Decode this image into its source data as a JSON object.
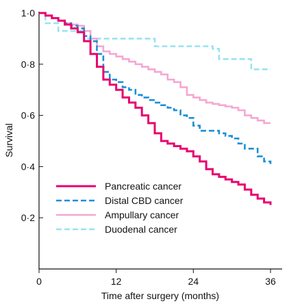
{
  "chart_data": {
    "type": "line",
    "step": true,
    "title": "",
    "xlabel": "Time after surgery (months)",
    "ylabel": "Survival",
    "xlim": [
      0,
      38
    ],
    "ylim": [
      0,
      1.0
    ],
    "x_ticks": [
      0,
      12,
      24,
      36
    ],
    "x_tick_labels": [
      "0",
      "12",
      "24",
      "36"
    ],
    "y_ticks": [
      0.2,
      0.4,
      0.6,
      0.8,
      1.0
    ],
    "y_tick_labels": [
      "0·2",
      "0·4",
      "0·6",
      "0·8",
      "1·0"
    ],
    "grid": false,
    "legend_position": "lower-left",
    "series": [
      {
        "name": "Pancreatic cancer",
        "color": "#e8006e",
        "dash": "solid",
        "points": [
          [
            0,
            1.0
          ],
          [
            1,
            0.99
          ],
          [
            2,
            0.98
          ],
          [
            3,
            0.97
          ],
          [
            4,
            0.955
          ],
          [
            5,
            0.94
          ],
          [
            6,
            0.925
          ],
          [
            7,
            0.89
          ],
          [
            8,
            0.84
          ],
          [
            9,
            0.79
          ],
          [
            10,
            0.74
          ],
          [
            11,
            0.72
          ],
          [
            12,
            0.7
          ],
          [
            13,
            0.67
          ],
          [
            14,
            0.65
          ],
          [
            15,
            0.63
          ],
          [
            16,
            0.6
          ],
          [
            17,
            0.57
          ],
          [
            18,
            0.53
          ],
          [
            19,
            0.5
          ],
          [
            20,
            0.49
          ],
          [
            21,
            0.48
          ],
          [
            22,
            0.47
          ],
          [
            23,
            0.46
          ],
          [
            24,
            0.44
          ],
          [
            25,
            0.42
          ],
          [
            26,
            0.39
          ],
          [
            27,
            0.37
          ],
          [
            28,
            0.36
          ],
          [
            29,
            0.35
          ],
          [
            30,
            0.34
          ],
          [
            31,
            0.33
          ],
          [
            32,
            0.31
          ],
          [
            33,
            0.29
          ],
          [
            34,
            0.275
          ],
          [
            35,
            0.26
          ],
          [
            36,
            0.25
          ]
        ]
      },
      {
        "name": "Distal CBD cancer",
        "color": "#1a8fd6",
        "dash": "dashed",
        "points": [
          [
            0,
            1.0
          ],
          [
            1,
            0.99
          ],
          [
            2,
            0.98
          ],
          [
            3,
            0.97
          ],
          [
            4,
            0.96
          ],
          [
            5,
            0.95
          ],
          [
            6,
            0.94
          ],
          [
            7,
            0.91
          ],
          [
            8,
            0.89
          ],
          [
            9,
            0.84
          ],
          [
            10,
            0.77
          ],
          [
            11,
            0.74
          ],
          [
            12,
            0.73
          ],
          [
            13,
            0.71
          ],
          [
            14,
            0.7
          ],
          [
            15,
            0.68
          ],
          [
            16,
            0.67
          ],
          [
            17,
            0.66
          ],
          [
            18,
            0.65
          ],
          [
            19,
            0.64
          ],
          [
            20,
            0.63
          ],
          [
            21,
            0.62
          ],
          [
            22,
            0.6
          ],
          [
            23,
            0.59
          ],
          [
            24,
            0.56
          ],
          [
            25,
            0.54
          ],
          [
            26,
            0.54
          ],
          [
            27,
            0.54
          ],
          [
            28,
            0.53
          ],
          [
            29,
            0.52
          ],
          [
            30,
            0.51
          ],
          [
            31,
            0.49
          ],
          [
            32,
            0.47
          ],
          [
            33,
            0.47
          ],
          [
            34,
            0.44
          ],
          [
            35,
            0.42
          ],
          [
            36,
            0.41
          ]
        ]
      },
      {
        "name": "Ampullary cancer",
        "color": "#f4a7d2",
        "dash": "solid",
        "points": [
          [
            0,
            1.0
          ],
          [
            1,
            0.99
          ],
          [
            2,
            0.98
          ],
          [
            3,
            0.97
          ],
          [
            4,
            0.96
          ],
          [
            5,
            0.955
          ],
          [
            6,
            0.95
          ],
          [
            7,
            0.93
          ],
          [
            8,
            0.9
          ],
          [
            9,
            0.87
          ],
          [
            10,
            0.85
          ],
          [
            11,
            0.84
          ],
          [
            12,
            0.83
          ],
          [
            13,
            0.82
          ],
          [
            14,
            0.81
          ],
          [
            15,
            0.8
          ],
          [
            16,
            0.79
          ],
          [
            17,
            0.78
          ],
          [
            18,
            0.77
          ],
          [
            19,
            0.76
          ],
          [
            20,
            0.74
          ],
          [
            21,
            0.73
          ],
          [
            22,
            0.71
          ],
          [
            23,
            0.68
          ],
          [
            24,
            0.67
          ],
          [
            25,
            0.66
          ],
          [
            26,
            0.65
          ],
          [
            27,
            0.645
          ],
          [
            28,
            0.64
          ],
          [
            29,
            0.635
          ],
          [
            30,
            0.63
          ],
          [
            31,
            0.62
          ],
          [
            32,
            0.6
          ],
          [
            33,
            0.59
          ],
          [
            34,
            0.58
          ],
          [
            35,
            0.57
          ],
          [
            36,
            0.57
          ]
        ]
      },
      {
        "name": "Duodenal cancer",
        "color": "#99e3f0",
        "dash": "dashed",
        "points": [
          [
            0,
            1.0
          ],
          [
            1,
            0.96
          ],
          [
            2,
            0.96
          ],
          [
            3,
            0.93
          ],
          [
            4,
            0.93
          ],
          [
            5,
            0.93
          ],
          [
            6,
            0.93
          ],
          [
            7,
            0.9
          ],
          [
            8,
            0.9
          ],
          [
            9,
            0.9
          ],
          [
            10,
            0.9
          ],
          [
            11,
            0.9
          ],
          [
            12,
            0.9
          ],
          [
            13,
            0.9
          ],
          [
            14,
            0.9
          ],
          [
            15,
            0.9
          ],
          [
            16,
            0.9
          ],
          [
            17,
            0.9
          ],
          [
            18,
            0.87
          ],
          [
            19,
            0.87
          ],
          [
            20,
            0.87
          ],
          [
            21,
            0.87
          ],
          [
            22,
            0.87
          ],
          [
            23,
            0.87
          ],
          [
            24,
            0.87
          ],
          [
            25,
            0.87
          ],
          [
            26,
            0.87
          ],
          [
            27,
            0.86
          ],
          [
            28,
            0.82
          ],
          [
            29,
            0.82
          ],
          [
            30,
            0.82
          ],
          [
            31,
            0.82
          ],
          [
            32,
            0.82
          ],
          [
            33,
            0.78
          ],
          [
            34,
            0.78
          ],
          [
            35,
            0.78
          ],
          [
            36,
            0.78
          ]
        ]
      }
    ]
  }
}
